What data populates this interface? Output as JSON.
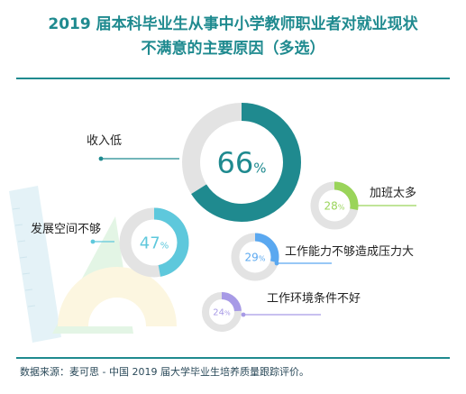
{
  "title_line1": "2019 届本科毕业生从事中小学教师职业者对就业现状",
  "title_line2": "不满意的主要原因（多选）",
  "source": "数据来源：麦可思 - 中国 2019 届大学毕业生培养质量跟踪评价。",
  "chart_data": {
    "type": "donut",
    "unit": "%",
    "items": [
      {
        "label": "收入低",
        "value": 66,
        "color": "#1f8a8f"
      },
      {
        "label": "发展空间不够",
        "value": 47,
        "color": "#5ec8dc"
      },
      {
        "label": "加班太多",
        "value": 28,
        "color": "#9ad45a"
      },
      {
        "label": "工作能力不够造成压力大",
        "value": 29,
        "color": "#5aa8f0"
      },
      {
        "label": "工作环境条件不好",
        "value": 24,
        "color": "#a79ae6"
      }
    ]
  }
}
